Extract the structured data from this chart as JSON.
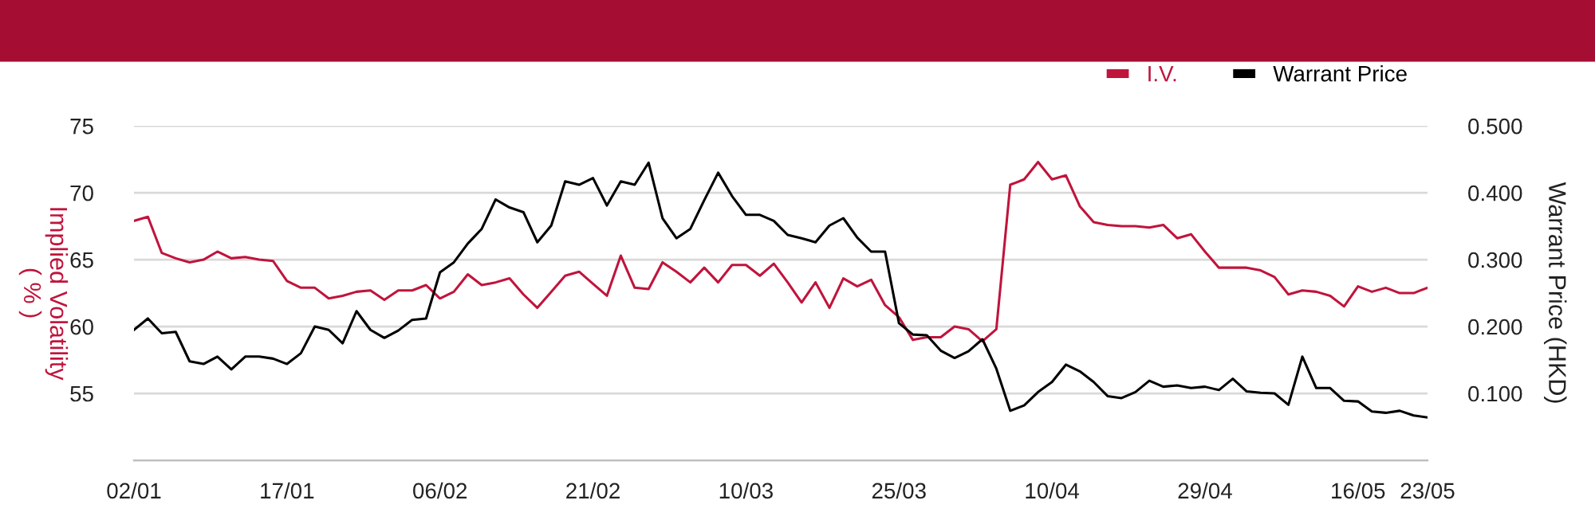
{
  "chart_data": {
    "type": "line",
    "categories": [
      "02/01",
      null,
      null,
      null,
      null,
      null,
      null,
      null,
      null,
      null,
      null,
      "17/01",
      null,
      null,
      null,
      null,
      null,
      null,
      null,
      null,
      null,
      null,
      "06/02",
      null,
      null,
      null,
      null,
      null,
      null,
      null,
      null,
      null,
      null,
      "21/02",
      null,
      null,
      null,
      null,
      null,
      null,
      null,
      null,
      null,
      null,
      "10/03",
      null,
      null,
      null,
      null,
      null,
      null,
      null,
      null,
      null,
      null,
      "25/03",
      null,
      null,
      null,
      null,
      null,
      null,
      null,
      null,
      null,
      null,
      "10/04",
      null,
      null,
      null,
      null,
      null,
      null,
      null,
      null,
      null,
      null,
      "29/04",
      null,
      null,
      null,
      null,
      null,
      null,
      null,
      null,
      null,
      null,
      "16/05",
      null,
      null,
      null,
      null,
      "23/05"
    ],
    "series": [
      {
        "name": "I.V.",
        "color": "#c0143c",
        "values": [
          67.9,
          68.2,
          65.5,
          65.1,
          64.8,
          65.0,
          65.6,
          65.1,
          65.2,
          65.0,
          64.9,
          63.4,
          62.9,
          62.9,
          62.1,
          62.3,
          62.6,
          62.7,
          62.0,
          62.7,
          62.7,
          63.1,
          62.1,
          62.6,
          63.9,
          63.1,
          63.3,
          63.6,
          62.4,
          61.4,
          62.6,
          63.8,
          64.1,
          63.2,
          62.3,
          65.3,
          62.9,
          62.8,
          64.8,
          64.1,
          63.3,
          64.4,
          63.3,
          64.6,
          64.6,
          63.8,
          64.7,
          63.3,
          61.8,
          63.3,
          61.4,
          63.6,
          63.0,
          63.5,
          61.6,
          60.7,
          59.0,
          59.2,
          59.2,
          60.0,
          59.8,
          58.9,
          59.8,
          70.6,
          71.0,
          72.3,
          71.0,
          71.3,
          69.0,
          67.8,
          67.6,
          67.5,
          67.5,
          67.4,
          67.6,
          66.6,
          66.9,
          65.6,
          64.4,
          64.4,
          64.4,
          64.2,
          63.7,
          62.4,
          62.7,
          62.6,
          62.3,
          61.5,
          63.0,
          62.6,
          62.9,
          62.5,
          62.5,
          62.9
        ]
      },
      {
        "name": "Warrant Price",
        "color": "#000000",
        "axis": "y2",
        "values": [
          0.195,
          0.212,
          0.19,
          0.192,
          0.148,
          0.144,
          0.155,
          0.136,
          0.155,
          0.155,
          0.152,
          0.144,
          0.16,
          0.2,
          0.195,
          0.175,
          0.223,
          0.195,
          0.183,
          0.194,
          0.21,
          0.212,
          0.281,
          0.296,
          0.324,
          0.346,
          0.39,
          0.378,
          0.371,
          0.326,
          0.351,
          0.417,
          0.412,
          0.422,
          0.381,
          0.417,
          0.412,
          0.445,
          0.362,
          0.332,
          0.346,
          0.389,
          0.43,
          0.395,
          0.367,
          0.367,
          0.358,
          0.337,
          0.332,
          0.326,
          0.351,
          0.362,
          0.333,
          0.312,
          0.312,
          0.205,
          0.188,
          0.187,
          0.164,
          0.153,
          0.163,
          0.181,
          0.137,
          0.074,
          0.082,
          0.102,
          0.117,
          0.143,
          0.133,
          0.117,
          0.096,
          0.093,
          0.102,
          0.119,
          0.11,
          0.112,
          0.108,
          0.11,
          0.105,
          0.122,
          0.103,
          0.101,
          0.1,
          0.083,
          0.155,
          0.108,
          0.108,
          0.089,
          0.088,
          0.073,
          0.071,
          0.074,
          0.067,
          0.064
        ]
      }
    ],
    "ylabel": "Implied Volatility\n( % )",
    "y2label": "Warrant Price (HKD)",
    "ylim": [
      50,
      75
    ],
    "yticks": [
      55,
      60,
      65,
      70,
      75
    ],
    "y2lim": [
      0,
      0.5
    ],
    "y2ticks": [
      {
        "value": 0.1,
        "label": "0.100"
      },
      {
        "value": 0.2,
        "label": "0.200"
      },
      {
        "value": 0.3,
        "label": "0.300"
      },
      {
        "value": 0.4,
        "label": "0.400"
      },
      {
        "value": 0.5,
        "label": "0.500"
      }
    ],
    "grid": "y",
    "legend": "top right",
    "marker": "none",
    "line_style": "solid"
  }
}
